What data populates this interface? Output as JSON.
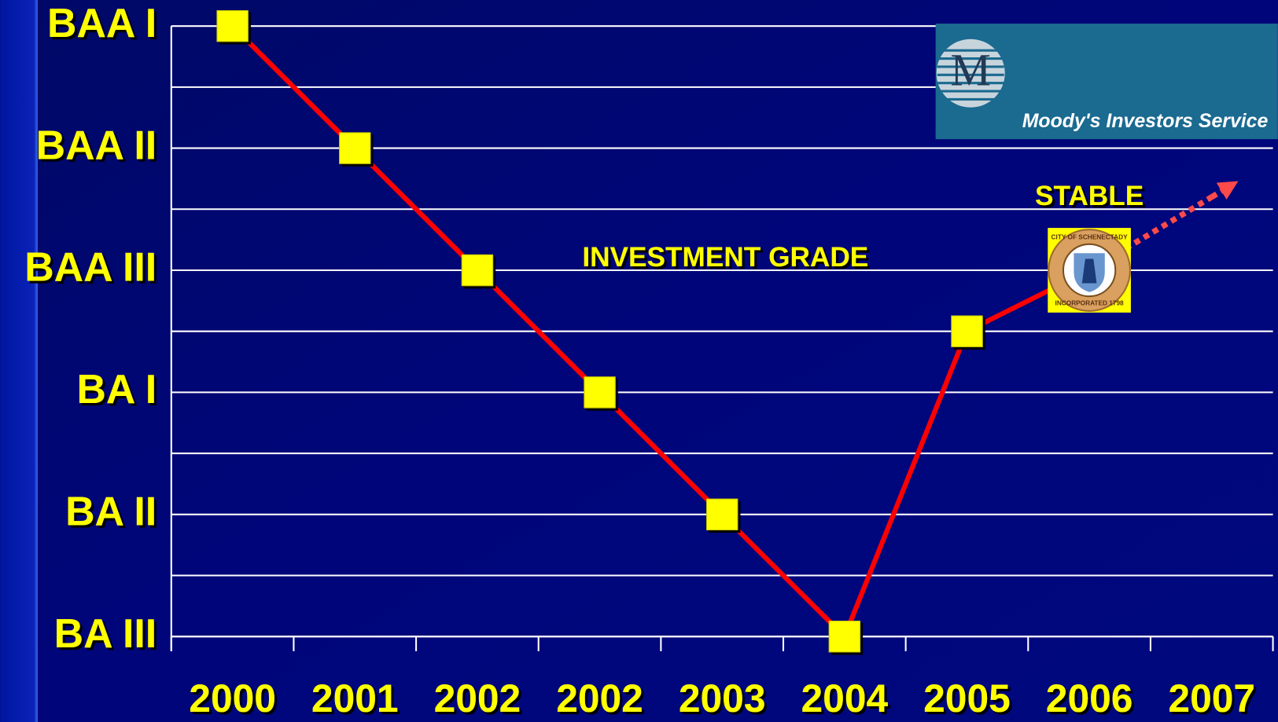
{
  "chart_data": {
    "type": "line",
    "categories": [
      "2000",
      "2001",
      "2002",
      "2002",
      "2003",
      "2004",
      "2005",
      "2006",
      "2007"
    ],
    "series": [
      {
        "color": "#ff0000",
        "style": "solid",
        "values": [
          6,
          5,
          4,
          3,
          2,
          1,
          3.5,
          4,
          null
        ]
      },
      {
        "color": "#ff4a4a",
        "style": "dotted",
        "values": [
          null,
          null,
          null,
          null,
          null,
          null,
          null,
          4,
          4.6
        ]
      }
    ],
    "ylim": [
      1,
      6
    ],
    "yticks": [
      {
        "value": 1,
        "label": "BA III"
      },
      {
        "value": 2,
        "label": "BA II"
      },
      {
        "value": 3,
        "label": "BA I"
      },
      {
        "value": 4,
        "label": "BAA III"
      },
      {
        "value": 5,
        "label": "BAA II"
      },
      {
        "value": 6,
        "label": "BAA I"
      }
    ],
    "minor_yticks": [
      1.5,
      2.5,
      3.5,
      4.5,
      5.5
    ],
    "grid": true,
    "marker_color": "#ffff00",
    "annotations": [
      "INVESTMENT GRADE",
      "STABLE"
    ],
    "seal_text": [
      "CITY OF SCHENECTADY",
      "INCORPORATED 1798"
    ],
    "logo": {
      "letter": "M",
      "text": "Moody's Investors Service"
    }
  }
}
